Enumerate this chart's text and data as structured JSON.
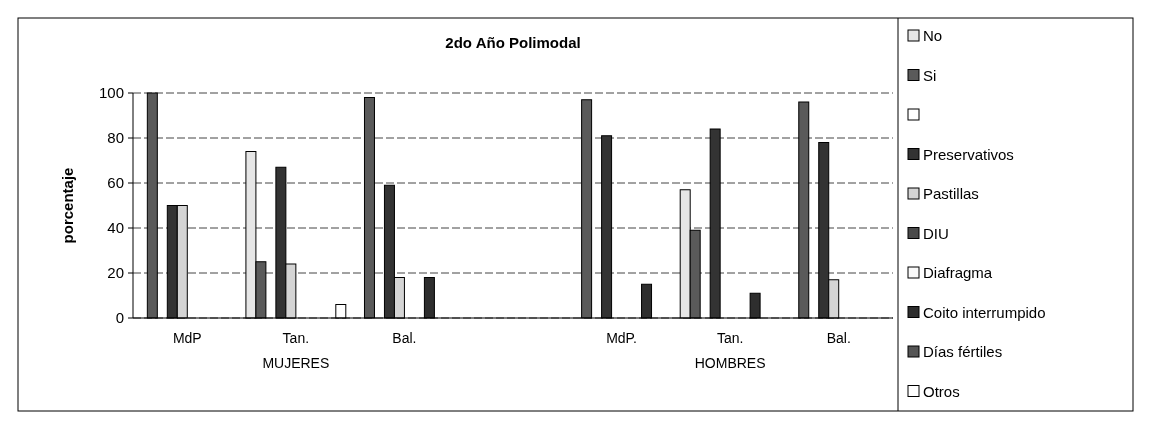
{
  "chart_data": {
    "type": "bar",
    "title": "2do Año Polimodal",
    "ylabel": "porcentaje",
    "categories": [
      "MdP",
      "Tan.",
      "Bal.",
      null,
      "MdP.",
      "Tan.",
      "Bal."
    ],
    "series": [
      {
        "name": "No",
        "color": "#e6e6e6",
        "values": [
          0,
          74,
          0,
          null,
          0,
          57,
          0
        ]
      },
      {
        "name": "Si",
        "color": "#5a5a5a",
        "values": [
          100,
          25,
          98,
          null,
          97,
          39,
          96
        ]
      },
      {
        "color": "#ffffff",
        "values": [
          0,
          0,
          0,
          null,
          0,
          0,
          0
        ]
      },
      {
        "name": "Preservativos",
        "color": "#333333",
        "values": [
          50,
          67,
          59,
          null,
          81,
          84,
          78
        ]
      },
      {
        "name": "Pastillas",
        "color": "#d4d4d4",
        "values": [
          50,
          24,
          18,
          null,
          0,
          0,
          17
        ]
      },
      {
        "name": "DIU",
        "color": "#4a4a4a",
        "values": [
          0,
          0,
          0,
          null,
          0,
          0,
          0
        ]
      },
      {
        "name": "Diafragma",
        "color": "#fafafa",
        "values": [
          0,
          0,
          0,
          null,
          0,
          0,
          0
        ]
      },
      {
        "name": "Coito interrumpido",
        "color": "#2e2e2e",
        "values": [
          0,
          0,
          18,
          null,
          15,
          11,
          0
        ]
      },
      {
        "name": "Días fértiles",
        "color": "#555555",
        "values": [
          0,
          0,
          0,
          null,
          0,
          0,
          0
        ]
      },
      {
        "name": "Otros",
        "color": "#ffffff",
        "values": [
          0,
          6,
          0,
          null,
          0,
          0,
          0
        ]
      }
    ],
    "annotations": [
      "MUJERES",
      "HOMBRES"
    ],
    "ylim": [
      0,
      100
    ],
    "yticks": [
      0,
      20,
      40,
      60,
      80,
      100
    ],
    "grid": "y",
    "legend": "right"
  }
}
